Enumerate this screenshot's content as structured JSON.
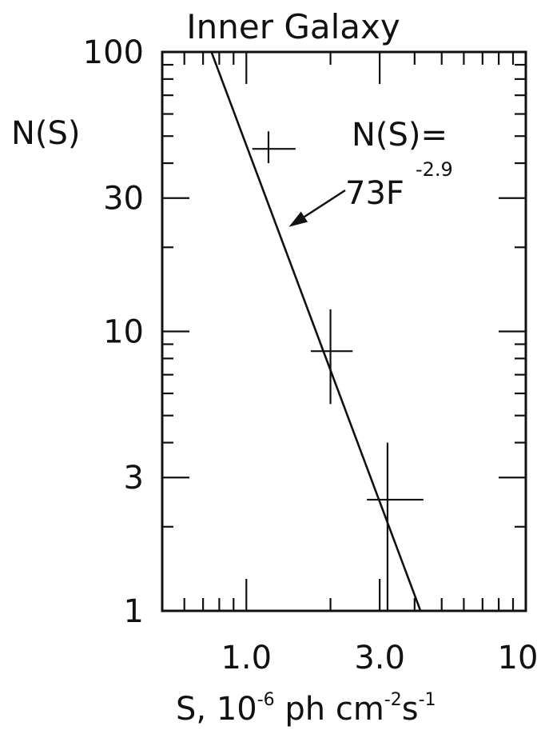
{
  "chart_data": {
    "type": "scatter",
    "title": "Inner Galaxy",
    "ylabel": "N(S)",
    "xlabel": {
      "base": "S, 10",
      "exp1": "-6",
      "mid1": " ph cm",
      "exp2": "-2",
      "mid2": "s",
      "exp3": "-1"
    },
    "x_scale": "log",
    "y_scale": "log",
    "xlim": [
      0.5,
      10
    ],
    "ylim": [
      1,
      100
    ],
    "grid": false,
    "x_ticks": [
      {
        "value": 1.0,
        "label": "1.0"
      },
      {
        "value": 3.0,
        "label": "3.0"
      },
      {
        "value": 10,
        "label": "10"
      }
    ],
    "y_ticks": [
      {
        "value": 1,
        "label": "1"
      },
      {
        "value": 3,
        "label": "3"
      },
      {
        "value": 10,
        "label": "10"
      },
      {
        "value": 30,
        "label": "30"
      },
      {
        "value": 100,
        "label": "100"
      }
    ],
    "points": [
      {
        "x": 1.2,
        "y": 45,
        "x_err": [
          1.05,
          1.5
        ],
        "y_err": [
          40,
          52
        ]
      },
      {
        "x": 2.0,
        "y": 8.5,
        "x_err": [
          1.7,
          2.4
        ],
        "y_err": [
          5.5,
          12
        ]
      },
      {
        "x": 3.2,
        "y": 2.5,
        "x_err": [
          2.7,
          4.3
        ],
        "y_err": [
          1,
          4
        ]
      }
    ],
    "fit": {
      "x_range": [
        0.75,
        4.2
      ],
      "y_range": [
        100,
        1
      ],
      "label_main": "N(S)=",
      "label_coef": "73F",
      "label_exp": "-2.9",
      "arrow_target": {
        "x": 1.45,
        "y": 24
      }
    }
  }
}
